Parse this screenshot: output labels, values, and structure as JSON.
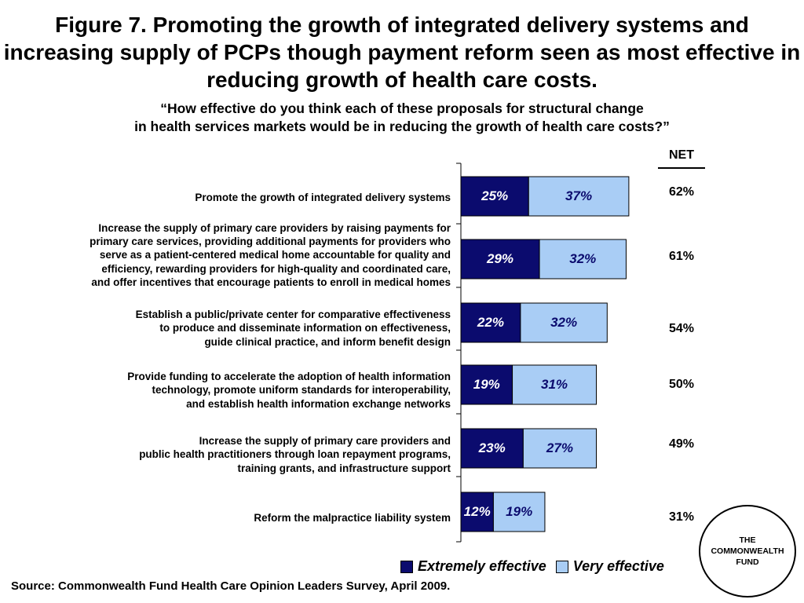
{
  "title": "Figure 7. Promoting the growth of integrated delivery systems and increasing supply of PCPs though payment reform seen as most effective in reducing growth of health care costs.",
  "subtitle_line1": "“How effective do you think each of these proposals for structural change",
  "subtitle_line2": "in health services markets would be in reducing the growth of health care costs?”",
  "net_header": "NET",
  "source": "Source: Commonwealth Fund Health Care Opinion Leaders Survey, April 2009.",
  "logo": {
    "line1": "THE",
    "line2": "COMMONWEALTH",
    "line3": "FUND"
  },
  "colors": {
    "extremely": "#0b0b6e",
    "very": "#a9cdf5"
  },
  "chart_data": {
    "type": "bar",
    "orientation": "horizontal",
    "stacked": true,
    "categories": [
      "Promote the growth of integrated delivery systems",
      "Increase the supply of primary care providers by raising payments for primary care services, providing additional payments for providers who serve as a patient-centered medical home accountable for quality and efficiency, rewarding providers for high-quality and coordinated care, and offer incentives that encourage patients to enroll in medical homes",
      "Establish a public/private center for comparative effectiveness to produce and disseminate information on effectiveness, guide clinical practice, and inform benefit design",
      "Provide funding to accelerate the adoption of health information technology, promote uniform standards for interoperability, and establish health information exchange networks",
      "Increase the supply of primary care providers and public health practitioners through loan repayment programs, training grants, and infrastructure support",
      "Reform the malpractice liability system"
    ],
    "category_lines": [
      [
        "Promote the growth of integrated delivery systems"
      ],
      [
        "Increase the supply of primary care providers by raising payments for",
        "primary care services, providing additional payments for providers who",
        "serve as a patient-centered medical home accountable for quality and",
        "efficiency, rewarding providers for high-quality and coordinated care,",
        "and offer incentives that encourage patients to enroll in medical homes"
      ],
      [
        "Establish a public/private center for comparative effectiveness",
        "to produce and disseminate information on effectiveness,",
        "guide clinical practice, and inform benefit design"
      ],
      [
        "Provide funding to accelerate the adoption of health information",
        "technology, promote uniform standards for interoperability,",
        "and establish health information exchange networks"
      ],
      [
        "Increase the supply of primary care providers and",
        "public health practitioners through loan repayment programs,",
        "training grants, and infrastructure support"
      ],
      [
        "Reform the malpractice liability system"
      ]
    ],
    "series": [
      {
        "name": "Extremely effective",
        "values": [
          25,
          29,
          22,
          19,
          23,
          12
        ]
      },
      {
        "name": "Very effective",
        "values": [
          37,
          32,
          32,
          31,
          27,
          19
        ]
      }
    ],
    "value_labels": [
      [
        "25%",
        "29%",
        "22%",
        "19%",
        "23%",
        "12%"
      ],
      [
        "37%",
        "32%",
        "32%",
        "31%",
        "27%",
        "19%"
      ]
    ],
    "net": [
      "62%",
      "61%",
      "54%",
      "50%",
      "49%",
      "31%"
    ],
    "xlim": [
      0,
      100
    ],
    "legend": "bottom",
    "grid": false
  }
}
